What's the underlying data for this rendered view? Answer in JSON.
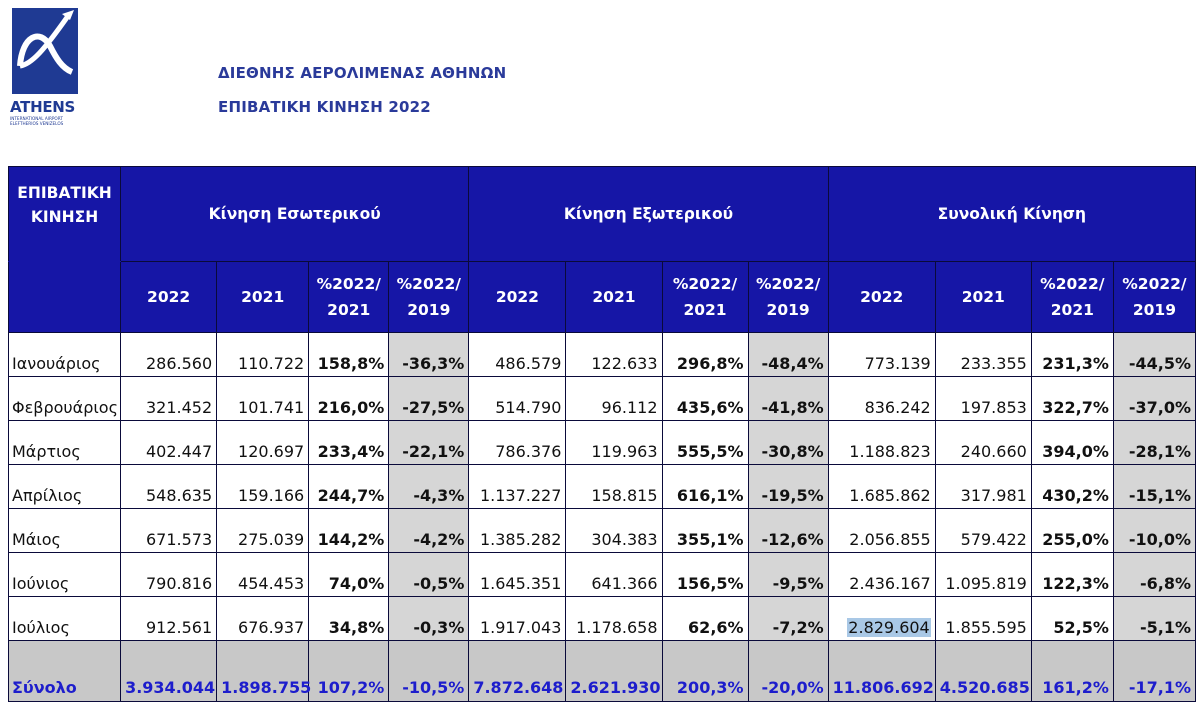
{
  "logo": {
    "brand": "ATHENS",
    "subtitle_line1": "INTERNATIONAL AIRPORT",
    "subtitle_line2": "ELEFTHERIOS VENIZELOS",
    "color": "#1f3a93"
  },
  "heading": {
    "line1": "ΔΙΕΘΝΗΣ ΑΕΡΟΛΙΜΕΝΑΣ ΑΘΗΝΩΝ",
    "line2": "ΕΠΙΒΑΤΙΚΗ ΚΙΝΗΣΗ 2022"
  },
  "table": {
    "row_label_header_line1": "ΕΠΙΒΑΤΙΚΗ",
    "row_label_header_line2": "ΚΙΝΗΣΗ",
    "groups": [
      "Κίνηση Εσωτερικού",
      "Κίνηση Εξωτερικού",
      "Συνολική Κίνηση"
    ],
    "sub_headers": [
      {
        "l1": "2022",
        "l2": ""
      },
      {
        "l1": "2021",
        "l2": ""
      },
      {
        "l1": "%2022/",
        "l2": "2021"
      },
      {
        "l1": "%2022/",
        "l2": "2019"
      }
    ],
    "rows": [
      {
        "month": "Ιανουάριος",
        "values": [
          "286.560",
          "110.722",
          "158,8%",
          "-36,3%",
          "486.579",
          "122.633",
          "296,8%",
          "-48,4%",
          "773.139",
          "233.355",
          "231,3%",
          "-44,5%"
        ]
      },
      {
        "month": "Φεβρουάριος",
        "values": [
          "321.452",
          "101.741",
          "216,0%",
          "-27,5%",
          "514.790",
          "96.112",
          "435,6%",
          "-41,8%",
          "836.242",
          "197.853",
          "322,7%",
          "-37,0%"
        ]
      },
      {
        "month": "Μάρτιος",
        "values": [
          "402.447",
          "120.697",
          "233,4%",
          "-22,1%",
          "786.376",
          "119.963",
          "555,5%",
          "-30,8%",
          "1.188.823",
          "240.660",
          "394,0%",
          "-28,1%"
        ]
      },
      {
        "month": "Απρίλιος",
        "values": [
          "548.635",
          "159.166",
          "244,7%",
          "-4,3%",
          "1.137.227",
          "158.815",
          "616,1%",
          "-19,5%",
          "1.685.862",
          "317.981",
          "430,2%",
          "-15,1%"
        ]
      },
      {
        "month": "Μάιος",
        "values": [
          "671.573",
          "275.039",
          "144,2%",
          "-4,2%",
          "1.385.282",
          "304.383",
          "355,1%",
          "-12,6%",
          "2.056.855",
          "579.422",
          "255,0%",
          "-10,0%"
        ]
      },
      {
        "month": "Ιούνιος",
        "values": [
          "790.816",
          "454.453",
          "74,0%",
          "-0,5%",
          "1.645.351",
          "641.366",
          "156,5%",
          "-9,5%",
          "2.436.167",
          "1.095.819",
          "122,3%",
          "-6,8%"
        ]
      },
      {
        "month": "Ιούλιος",
        "values": [
          "912.561",
          "676.937",
          "34,8%",
          "-0,3%",
          "1.917.043",
          "1.178.658",
          "62,6%",
          "-7,2%",
          "2.829.604",
          "1.855.595",
          "52,5%",
          "-5,1%"
        ]
      }
    ],
    "total": {
      "month": "Σύνολο",
      "values": [
        "3.934.044",
        "1.898.755",
        "107,2%",
        "-10,5%",
        "7.872.648",
        "2.621.930",
        "200,3%",
        "-20,0%",
        "11.806.692",
        "4.520.685",
        "161,2%",
        "-17,1%"
      ]
    },
    "colors": {
      "header_bg": "#1616a6",
      "shade": "#d6d6d6",
      "total_text": "#1d1dcc",
      "highlight": "#a9c8e6"
    }
  }
}
